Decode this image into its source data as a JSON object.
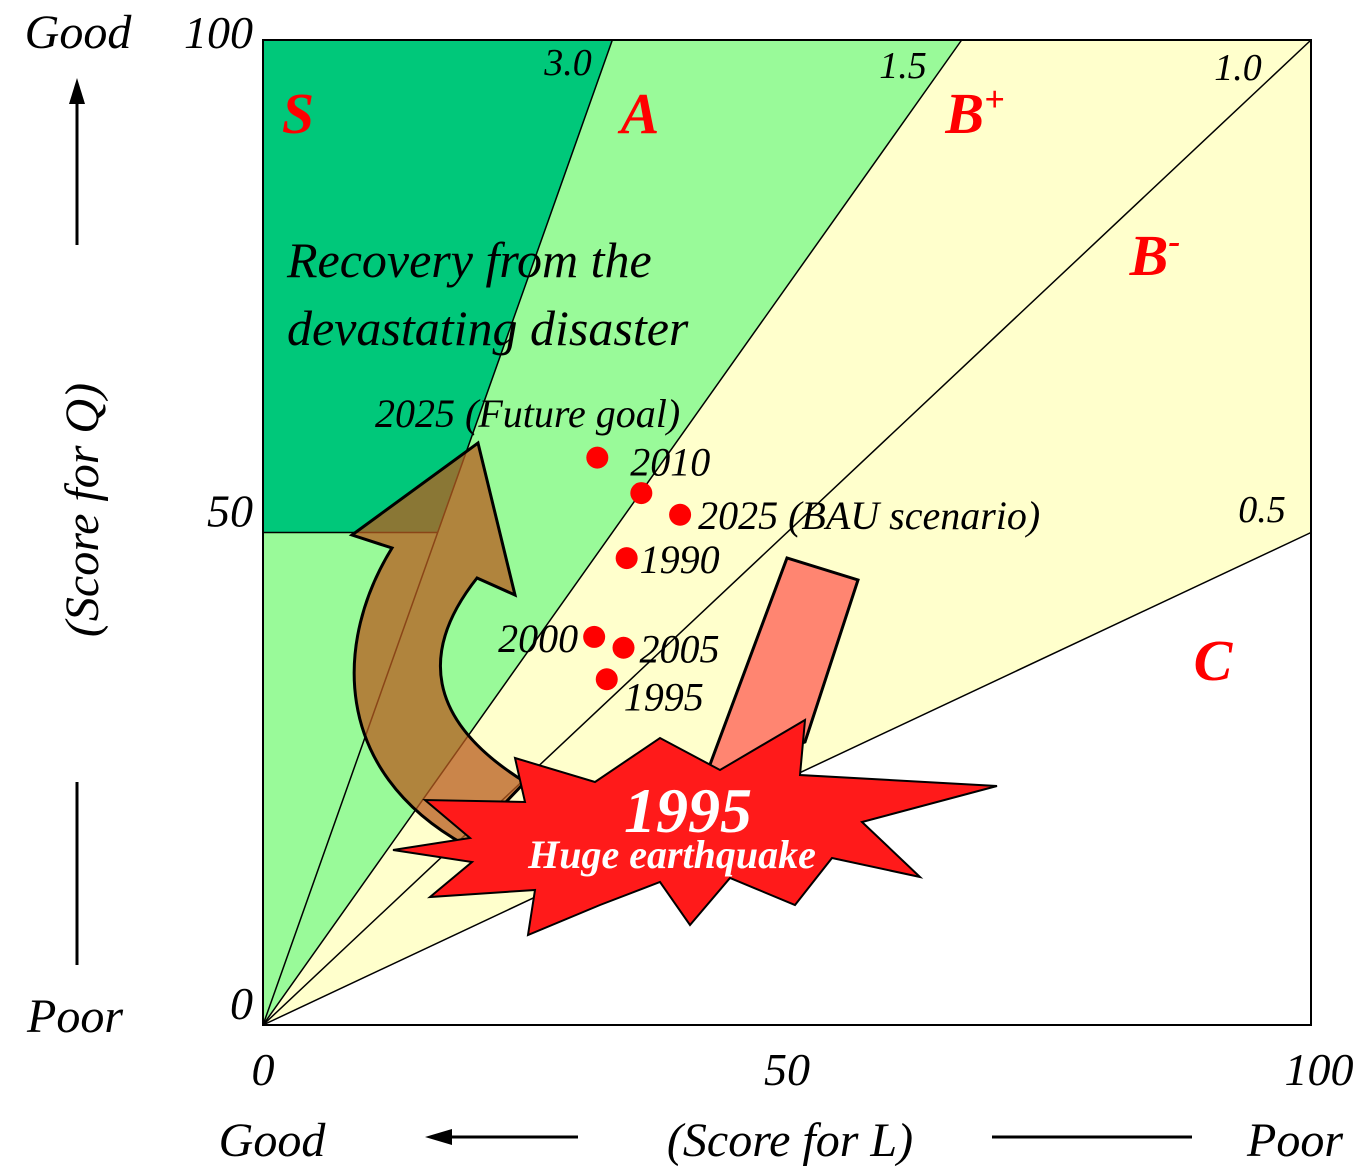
{
  "chart_data": {
    "type": "scatter",
    "xlabel": "(Score for L)",
    "ylabel": "(Score for Q)",
    "x_good": "Good",
    "x_poor": "Poor",
    "y_good": "Good",
    "y_poor": "Poor",
    "xlim": [
      0,
      100
    ],
    "ylim": [
      0,
      100
    ],
    "xticks": [
      0,
      50,
      100
    ],
    "yticks": [
      0,
      50,
      100
    ],
    "slopes": [
      {
        "value": 3,
        "label": "3.0"
      },
      {
        "value": 1.5,
        "label": "1.5"
      },
      {
        "value": 1,
        "label": "1.0"
      },
      0.5
    ],
    "regions": [
      {
        "name": "S",
        "color": "#00c87a"
      },
      {
        "name": "A",
        "color": "#99fa99"
      },
      {
        "name": "B",
        "sup": "+",
        "color": "#ffffcc"
      },
      {
        "name": "B",
        "sup": "-",
        "color": "#ffffcc"
      },
      {
        "name": "C",
        "color": "#ffffff"
      }
    ],
    "series": [
      {
        "name": "Score",
        "color": "#ff0000",
        "x": [
          31.9,
          36.1,
          39.8,
          34.7,
          31.6,
          34.4,
          32.8
        ],
        "values": [
          57.6,
          54.0,
          51.8,
          47.4,
          39.4,
          38.3,
          35.1
        ],
        "labels": [
          "2010",
          null,
          "2025 (BAU scenario)",
          "1990",
          "2000",
          "2005",
          "1995"
        ]
      }
    ],
    "annotations": {
      "recovery": [
        "Recovery from the",
        "devastating disaster"
      ],
      "goal": "2025 (Future goal)",
      "quake_year": "1995",
      "quake": "Huge earthquake"
    }
  }
}
